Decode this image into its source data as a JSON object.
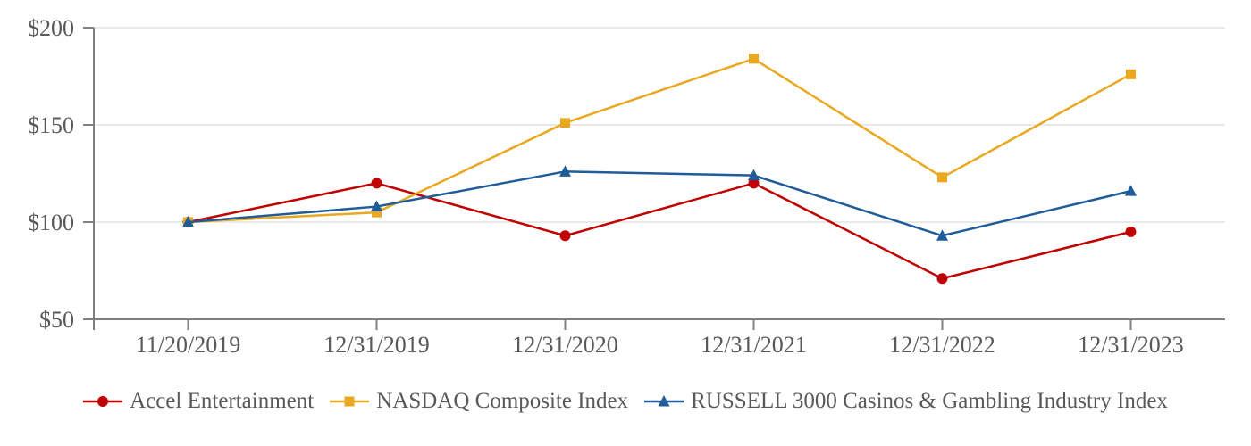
{
  "chart_data": {
    "type": "line",
    "title": "",
    "xlabel": "",
    "ylabel": "",
    "categories": [
      "11/20/2019",
      "12/31/2019",
      "12/31/2020",
      "12/31/2021",
      "12/31/2022",
      "12/31/2023"
    ],
    "series": [
      {
        "name": "Accel Entertainment",
        "marker": "circle",
        "color": "#C00000",
        "values": [
          100,
          120,
          93,
          120,
          71,
          95
        ]
      },
      {
        "name": "NASDAQ Composite Index",
        "marker": "square",
        "color": "#E9A820",
        "values": [
          100,
          105,
          151,
          184,
          123,
          176
        ]
      },
      {
        "name": "RUSSELL 3000 Casinos & Gambling Industry Index",
        "marker": "triangle",
        "color": "#1F5C99",
        "values": [
          100,
          108,
          126,
          124,
          93,
          116
        ]
      }
    ],
    "y_ticks": [
      50,
      100,
      150,
      200
    ],
    "y_tick_labels": [
      "$50",
      "$100",
      "$150",
      "$200"
    ],
    "ylim": [
      50,
      200
    ],
    "grid": true,
    "legend_position": "bottom",
    "axis_color": "#808080",
    "grid_color": "#E2E2E2",
    "text_color": "#595959"
  }
}
